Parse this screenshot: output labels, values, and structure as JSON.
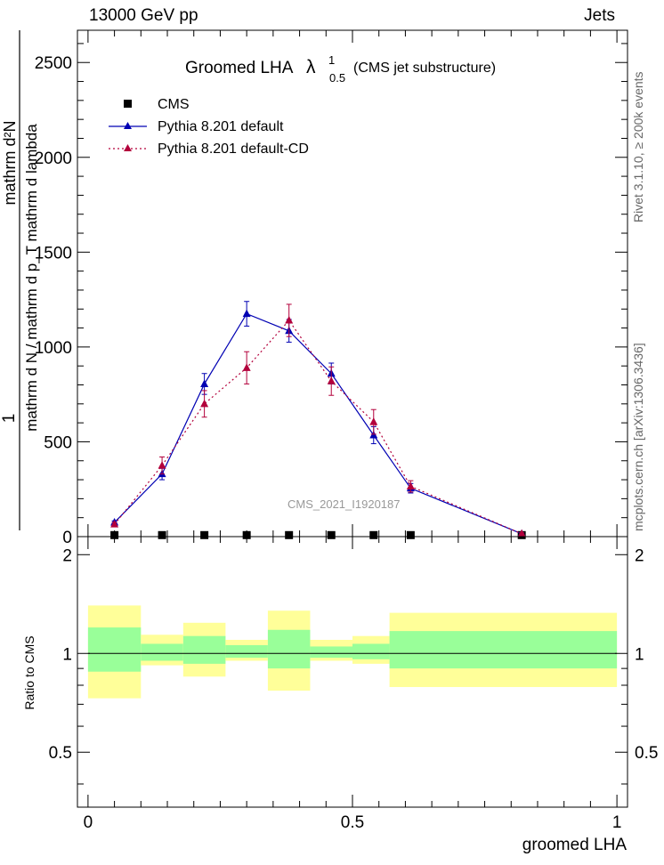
{
  "header": {
    "left": "13000 GeV pp",
    "right": "Jets"
  },
  "side_labels": {
    "rivet": "Rivet 3.1.10, ≥ 200k events",
    "mcplots": "mcplots.cern.ch [arXiv:1306.3436]"
  },
  "chart_data": [
    {
      "type": "line",
      "title_main": "Groomed LHA",
      "title_symbol": "λ",
      "title_sup": "1",
      "title_sub": "0.5",
      "title_suffix": "(CMS jet substructure)",
      "watermark": "CMS_2021_I1920187",
      "ylabel_numerator": "1",
      "ylabel_denominator": "mathrm d N / mathrm d p_T mathrm d lambda",
      "ylabel_top": "mathrm d²N",
      "ylabel_bottom": "mathrm d p_T mathrm d p_T mathrm d lambda",
      "xlim": [
        -0.02,
        1.02
      ],
      "ylim": [
        0,
        2670
      ],
      "yticks": [
        0,
        500,
        1000,
        1500,
        2000,
        2500
      ],
      "yticklabels": [
        "0",
        "500",
        "1000",
        "1500",
        "2000",
        "2500"
      ],
      "log_scale": false,
      "legend_position": "top-left",
      "series": [
        {
          "name": "CMS",
          "color": "#000000",
          "marker": "square",
          "x": [
            0.05,
            0.14,
            0.22,
            0.3,
            0.38,
            0.46,
            0.54,
            0.61,
            0.82
          ],
          "y": [
            8,
            8,
            8,
            8,
            8,
            8,
            8,
            8,
            8
          ]
        },
        {
          "name": "Pythia 8.201 default",
          "color": "#0000b3",
          "marker": "triangle",
          "line": "solid",
          "x": [
            0.05,
            0.14,
            0.22,
            0.3,
            0.38,
            0.46,
            0.54,
            0.61,
            0.82
          ],
          "y": [
            75,
            330,
            805,
            1175,
            1085,
            860,
            535,
            255,
            15
          ],
          "err": [
            8,
            30,
            55,
            65,
            60,
            55,
            45,
            25,
            5
          ]
        },
        {
          "name": "Pythia 8.201 default-CD",
          "color": "#b3003b",
          "marker": "triangle",
          "line": "dotted",
          "x": [
            0.05,
            0.14,
            0.22,
            0.3,
            0.38,
            0.46,
            0.54,
            0.61,
            0.82
          ],
          "y": [
            65,
            375,
            700,
            890,
            1140,
            820,
            605,
            265,
            15
          ],
          "err": [
            10,
            45,
            70,
            85,
            85,
            75,
            65,
            30,
            5
          ]
        }
      ]
    },
    {
      "type": "area",
      "ylabel": "Ratio to CMS",
      "xlabel": "groomed LHA",
      "xlim": [
        -0.02,
        1.02
      ],
      "xticks": [
        0,
        0.5,
        1
      ],
      "xticklabels": [
        "0",
        "0.5",
        "1"
      ],
      "ylim": [
        0.34,
        2.27
      ],
      "yticks": [
        0.5,
        1,
        2
      ],
      "yticklabels": [
        "0.5",
        "1",
        "2"
      ],
      "bins": [
        {
          "lo": 0.0,
          "hi": 0.1,
          "green": [
            0.88,
            1.2
          ],
          "yellow": [
            0.73,
            1.4
          ]
        },
        {
          "lo": 0.1,
          "hi": 0.18,
          "green": [
            0.95,
            1.07
          ],
          "yellow": [
            0.92,
            1.14
          ]
        },
        {
          "lo": 0.18,
          "hi": 0.26,
          "green": [
            0.93,
            1.13
          ],
          "yellow": [
            0.85,
            1.24
          ]
        },
        {
          "lo": 0.26,
          "hi": 0.34,
          "green": [
            0.97,
            1.06
          ],
          "yellow": [
            0.95,
            1.1
          ]
        },
        {
          "lo": 0.34,
          "hi": 0.42,
          "green": [
            0.9,
            1.18
          ],
          "yellow": [
            0.77,
            1.35
          ]
        },
        {
          "lo": 0.42,
          "hi": 0.5,
          "green": [
            0.97,
            1.05
          ],
          "yellow": [
            0.95,
            1.1
          ]
        },
        {
          "lo": 0.5,
          "hi": 0.57,
          "green": [
            0.96,
            1.07
          ],
          "yellow": [
            0.93,
            1.13
          ]
        },
        {
          "lo": 0.57,
          "hi": 1.0,
          "green": [
            0.9,
            1.17
          ],
          "yellow": [
            0.79,
            1.33
          ]
        }
      ],
      "band_colors": {
        "green": "#99ff99",
        "yellow": "#ffff99"
      }
    }
  ]
}
